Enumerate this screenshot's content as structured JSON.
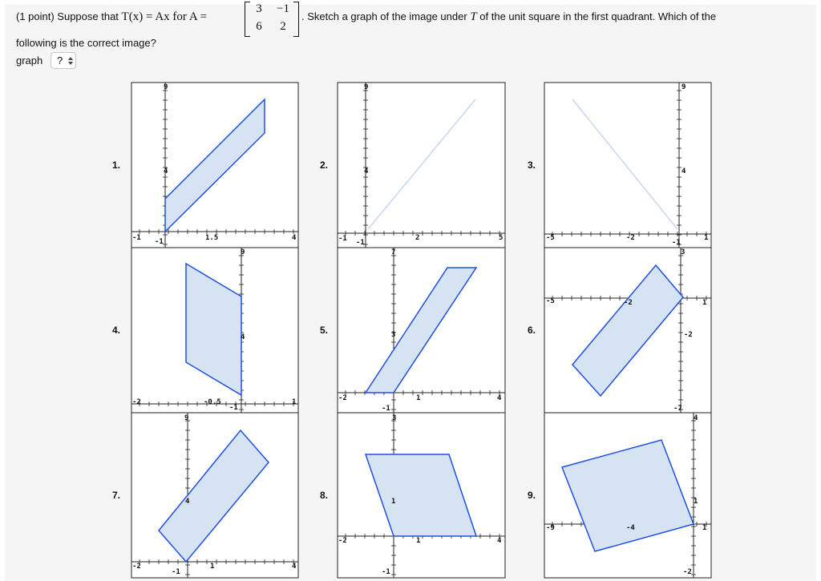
{
  "problem": {
    "points": "(1 point) Suppose that",
    "math_lhs": "T(x) = Ax for A =",
    "matrix": [
      "3",
      "−1",
      "6",
      "2"
    ],
    "after_matrix": ". Sketch a graph of the image under",
    "T": "T",
    "rest": "of the unit square in the first quadrant. Which of the",
    "line2": "following is the correct image?"
  },
  "answer": {
    "label": "graph",
    "selected": "?"
  },
  "colors": {
    "panel": "#f5f5f5",
    "shape_fill": "#d6e3f3",
    "shape_stroke": "#1f4fe0",
    "faint": "#c6d7ef"
  },
  "graphs": [
    {
      "label": "1.",
      "ticks": [
        {
          "t": "9"
        },
        {
          "t": "4"
        },
        {
          "t": "-1"
        },
        {
          "t": "-1"
        },
        {
          "t": "1.5"
        },
        {
          "t": "4"
        }
      ]
    },
    {
      "label": "2.",
      "ticks": [
        {
          "t": "9"
        },
        {
          "t": "4"
        },
        {
          "t": "-1"
        },
        {
          "t": "-1"
        },
        {
          "t": "2"
        },
        {
          "t": "5"
        }
      ]
    },
    {
      "label": "3.",
      "ticks": [
        {
          "t": "9"
        },
        {
          "t": "4"
        },
        {
          "t": "-5"
        },
        {
          "t": "-2"
        },
        {
          "t": "-1"
        },
        {
          "t": "1"
        }
      ]
    },
    {
      "label": "4.",
      "ticks": [
        {
          "t": "9"
        },
        {
          "t": "4"
        },
        {
          "t": "-2"
        },
        {
          "t": "-0.5"
        },
        {
          "t": "-1"
        },
        {
          "t": "1"
        }
      ]
    },
    {
      "label": "5.",
      "ticks": [
        {
          "t": "7"
        },
        {
          "t": "3"
        },
        {
          "t": "-2"
        },
        {
          "t": "-1"
        },
        {
          "t": "1"
        },
        {
          "t": "4"
        }
      ]
    },
    {
      "label": "6.",
      "ticks": [
        {
          "t": "3"
        },
        {
          "t": "-5"
        },
        {
          "t": "-2"
        },
        {
          "t": "1"
        },
        {
          "t": "-2"
        },
        {
          "t": "-7"
        }
      ]
    },
    {
      "label": "7.",
      "ticks": [
        {
          "t": "9"
        },
        {
          "t": "4"
        },
        {
          "t": "-2"
        },
        {
          "t": "-1"
        },
        {
          "t": "1"
        },
        {
          "t": "4"
        }
      ]
    },
    {
      "label": "8.",
      "ticks": [
        {
          "t": "3"
        },
        {
          "t": "1"
        },
        {
          "t": "-2"
        },
        {
          "t": "-1"
        },
        {
          "t": "1"
        },
        {
          "t": "4"
        }
      ]
    },
    {
      "label": "9.",
      "ticks": [
        {
          "t": "4"
        },
        {
          "t": "1"
        },
        {
          "t": "-9"
        },
        {
          "t": "-4"
        },
        {
          "t": "1"
        },
        {
          "t": "-2"
        }
      ]
    }
  ]
}
